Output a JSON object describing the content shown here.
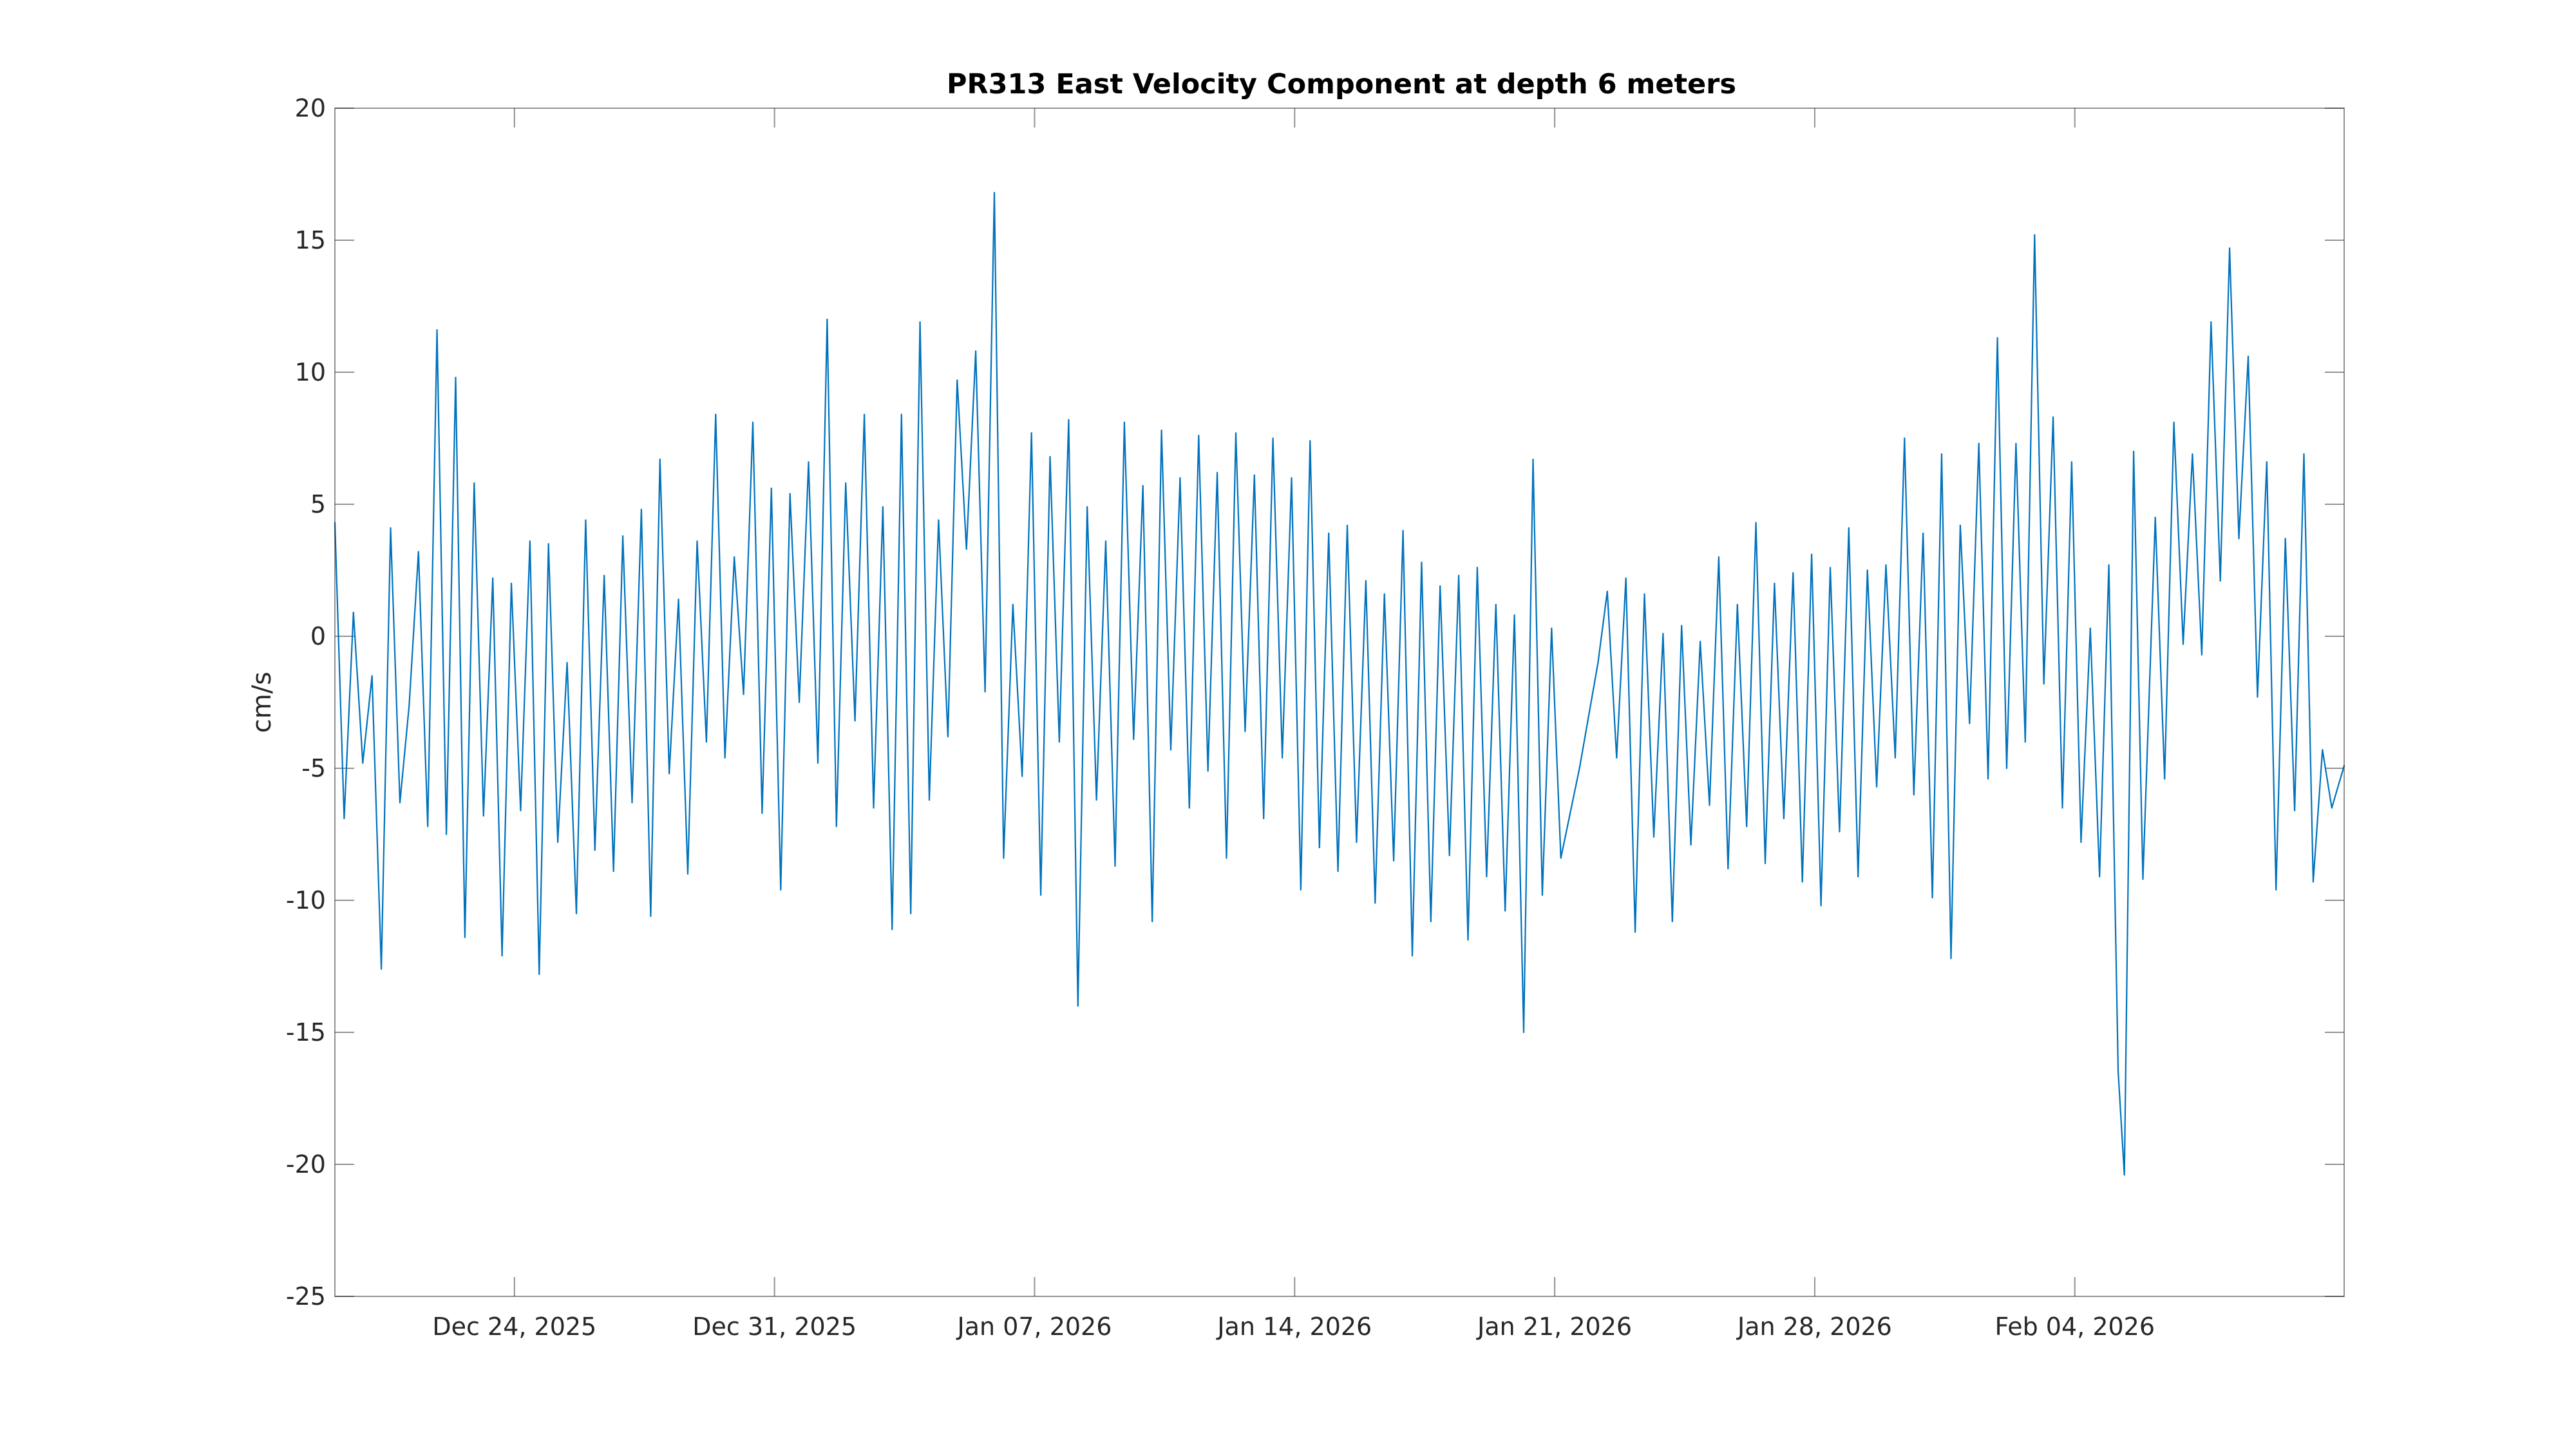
{
  "chart_data": {
    "type": "line",
    "title": "PR313 East Velocity Component at depth 6 meters",
    "xlabel": "",
    "ylabel": "cm/s",
    "xlim": [
      "2025-12-19T04:00",
      "2026-02-11T06:00"
    ],
    "ylim": [
      -25,
      20
    ],
    "yticks": [
      20,
      15,
      10,
      5,
      0,
      -5,
      -10,
      -15,
      -20,
      -25
    ],
    "xticks": [
      {
        "date": "2025-12-24",
        "label": "Dec 24, 2025"
      },
      {
        "date": "2025-12-31",
        "label": "Dec 31, 2025"
      },
      {
        "date": "2026-01-07",
        "label": "Jan 07, 2026"
      },
      {
        "date": "2026-01-14",
        "label": "Jan 14, 2026"
      },
      {
        "date": "2026-01-21",
        "label": "Jan 21, 2026"
      },
      {
        "date": "2026-01-28",
        "label": "Jan 28, 2026"
      },
      {
        "date": "2026-02-04",
        "label": "Feb 04, 2026"
      }
    ],
    "grid": false,
    "line_color": "#0072BD",
    "series": [
      {
        "name": "",
        "points": [
          [
            "2025-12-19T04:00",
            4.3
          ],
          [
            "2025-12-19T10:00",
            -6.9
          ],
          [
            "2025-12-19T16:00",
            0.9
          ],
          [
            "2025-12-19T22:00",
            -4.8
          ],
          [
            "2025-12-20T04:00",
            -1.5
          ],
          [
            "2025-12-20T10:00",
            -12.6
          ],
          [
            "2025-12-20T16:00",
            4.1
          ],
          [
            "2025-12-20T22:00",
            -6.3
          ],
          [
            "2025-12-21T04:00",
            -2.6
          ],
          [
            "2025-12-21T10:00",
            3.2
          ],
          [
            "2025-12-21T16:00",
            -7.2
          ],
          [
            "2025-12-21T22:00",
            11.6
          ],
          [
            "2025-12-22T04:00",
            -7.5
          ],
          [
            "2025-12-22T10:00",
            9.8
          ],
          [
            "2025-12-22T16:00",
            -11.4
          ],
          [
            "2025-12-22T22:00",
            5.8
          ],
          [
            "2025-12-23T04:00",
            -6.8
          ],
          [
            "2025-12-23T10:00",
            2.2
          ],
          [
            "2025-12-23T16:00",
            -12.1
          ],
          [
            "2025-12-23T22:00",
            2.0
          ],
          [
            "2025-12-24T04:00",
            -6.6
          ],
          [
            "2025-12-24T10:00",
            3.6
          ],
          [
            "2025-12-24T16:00",
            -12.8
          ],
          [
            "2025-12-24T22:00",
            3.5
          ],
          [
            "2025-12-25T04:00",
            -7.8
          ],
          [
            "2025-12-25T10:00",
            -1.0
          ],
          [
            "2025-12-25T16:00",
            -10.5
          ],
          [
            "2025-12-25T22:00",
            4.4
          ],
          [
            "2025-12-26T04:00",
            -8.1
          ],
          [
            "2025-12-26T10:00",
            2.3
          ],
          [
            "2025-12-26T16:00",
            -8.9
          ],
          [
            "2025-12-26T22:00",
            3.8
          ],
          [
            "2025-12-27T04:00",
            -6.3
          ],
          [
            "2025-12-27T10:00",
            4.8
          ],
          [
            "2025-12-27T16:00",
            -10.6
          ],
          [
            "2025-12-27T22:00",
            6.7
          ],
          [
            "2025-12-28T04:00",
            -5.2
          ],
          [
            "2025-12-28T10:00",
            1.4
          ],
          [
            "2025-12-28T16:00",
            -9.0
          ],
          [
            "2025-12-28T22:00",
            3.6
          ],
          [
            "2025-12-29T04:00",
            -4.0
          ],
          [
            "2025-12-29T10:00",
            8.4
          ],
          [
            "2025-12-29T16:00",
            -4.6
          ],
          [
            "2025-12-29T22:00",
            3.0
          ],
          [
            "2025-12-30T04:00",
            -2.2
          ],
          [
            "2025-12-30T10:00",
            8.1
          ],
          [
            "2025-12-30T16:00",
            -6.7
          ],
          [
            "2025-12-30T22:00",
            5.6
          ],
          [
            "2025-12-31T04:00",
            -9.6
          ],
          [
            "2025-12-31T10:00",
            5.4
          ],
          [
            "2025-12-31T16:00",
            -2.5
          ],
          [
            "2025-12-31T22:00",
            6.6
          ],
          [
            "2026-01-01T04:00",
            -4.8
          ],
          [
            "2026-01-01T10:00",
            12.0
          ],
          [
            "2026-01-01T16:00",
            -7.2
          ],
          [
            "2026-01-01T22:00",
            5.8
          ],
          [
            "2026-01-02T04:00",
            -3.2
          ],
          [
            "2026-01-02T10:00",
            8.4
          ],
          [
            "2026-01-02T16:00",
            -6.5
          ],
          [
            "2026-01-02T22:00",
            4.9
          ],
          [
            "2026-01-03T04:00",
            -11.1
          ],
          [
            "2026-01-03T10:00",
            8.4
          ],
          [
            "2026-01-03T16:00",
            -10.5
          ],
          [
            "2026-01-03T22:00",
            11.9
          ],
          [
            "2026-01-04T04:00",
            -6.2
          ],
          [
            "2026-01-04T10:00",
            4.4
          ],
          [
            "2026-01-04T16:00",
            -3.8
          ],
          [
            "2026-01-04T22:00",
            9.7
          ],
          [
            "2026-01-05T04:00",
            3.3
          ],
          [
            "2026-01-05T10:00",
            10.8
          ],
          [
            "2026-01-05T16:00",
            -2.1
          ],
          [
            "2026-01-05T22:00",
            16.8
          ],
          [
            "2026-01-06T04:00",
            -8.4
          ],
          [
            "2026-01-06T10:00",
            1.2
          ],
          [
            "2026-01-06T16:00",
            -5.3
          ],
          [
            "2026-01-06T22:00",
            7.7
          ],
          [
            "2026-01-07T04:00",
            -9.8
          ],
          [
            "2026-01-07T10:00",
            6.8
          ],
          [
            "2026-01-07T16:00",
            -4.0
          ],
          [
            "2026-01-07T22:00",
            8.2
          ],
          [
            "2026-01-08T04:00",
            -14.0
          ],
          [
            "2026-01-08T10:00",
            4.9
          ],
          [
            "2026-01-08T16:00",
            -6.2
          ],
          [
            "2026-01-08T22:00",
            3.6
          ],
          [
            "2026-01-09T04:00",
            -8.7
          ],
          [
            "2026-01-09T10:00",
            8.1
          ],
          [
            "2026-01-09T16:00",
            -3.9
          ],
          [
            "2026-01-09T22:00",
            5.7
          ],
          [
            "2026-01-10T04:00",
            -10.8
          ],
          [
            "2026-01-10T10:00",
            7.8
          ],
          [
            "2026-01-10T16:00",
            -4.3
          ],
          [
            "2026-01-10T22:00",
            6.0
          ],
          [
            "2026-01-11T04:00",
            -6.5
          ],
          [
            "2026-01-11T10:00",
            7.6
          ],
          [
            "2026-01-11T16:00",
            -5.1
          ],
          [
            "2026-01-11T22:00",
            6.2
          ],
          [
            "2026-01-12T04:00",
            -8.4
          ],
          [
            "2026-01-12T10:00",
            7.7
          ],
          [
            "2026-01-12T16:00",
            -3.6
          ],
          [
            "2026-01-12T22:00",
            6.1
          ],
          [
            "2026-01-13T04:00",
            -6.9
          ],
          [
            "2026-01-13T10:00",
            7.5
          ],
          [
            "2026-01-13T16:00",
            -4.6
          ],
          [
            "2026-01-13T22:00",
            6.0
          ],
          [
            "2026-01-14T04:00",
            -9.6
          ],
          [
            "2026-01-14T10:00",
            7.4
          ],
          [
            "2026-01-14T16:00",
            -8.0
          ],
          [
            "2026-01-14T22:00",
            3.9
          ],
          [
            "2026-01-15T04:00",
            -8.9
          ],
          [
            "2026-01-15T10:00",
            4.2
          ],
          [
            "2026-01-15T16:00",
            -7.8
          ],
          [
            "2026-01-15T22:00",
            2.1
          ],
          [
            "2026-01-16T04:00",
            -10.1
          ],
          [
            "2026-01-16T10:00",
            1.6
          ],
          [
            "2026-01-16T16:00",
            -8.5
          ],
          [
            "2026-01-16T22:00",
            4.0
          ],
          [
            "2026-01-17T04:00",
            -12.1
          ],
          [
            "2026-01-17T10:00",
            2.8
          ],
          [
            "2026-01-17T16:00",
            -10.8
          ],
          [
            "2026-01-17T22:00",
            1.9
          ],
          [
            "2026-01-18T04:00",
            -8.3
          ],
          [
            "2026-01-18T10:00",
            2.3
          ],
          [
            "2026-01-18T16:00",
            -11.5
          ],
          [
            "2026-01-18T22:00",
            2.6
          ],
          [
            "2026-01-19T04:00",
            -9.1
          ],
          [
            "2026-01-19T10:00",
            1.2
          ],
          [
            "2026-01-19T16:00",
            -10.4
          ],
          [
            "2026-01-19T22:00",
            0.8
          ],
          [
            "2026-01-20T04:00",
            -15.0
          ],
          [
            "2026-01-20T10:00",
            6.7
          ],
          [
            "2026-01-20T16:00",
            -9.8
          ],
          [
            "2026-01-20T22:00",
            0.3
          ],
          [
            "2026-01-21T04:00",
            -8.4
          ],
          [
            "2026-01-21T16:00",
            -5.0
          ],
          [
            "2026-01-22T04:00",
            -1.0
          ],
          [
            "2026-01-22T10:00",
            1.7
          ],
          [
            "2026-01-22T16:00",
            -4.6
          ],
          [
            "2026-01-22T22:00",
            2.2
          ],
          [
            "2026-01-23T04:00",
            -11.2
          ],
          [
            "2026-01-23T10:00",
            1.6
          ],
          [
            "2026-01-23T16:00",
            -7.6
          ],
          [
            "2026-01-23T22:00",
            0.1
          ],
          [
            "2026-01-24T04:00",
            -10.8
          ],
          [
            "2026-01-24T10:00",
            0.4
          ],
          [
            "2026-01-24T16:00",
            -7.9
          ],
          [
            "2026-01-24T22:00",
            -0.2
          ],
          [
            "2026-01-25T04:00",
            -6.4
          ],
          [
            "2026-01-25T10:00",
            3.0
          ],
          [
            "2026-01-25T16:00",
            -8.8
          ],
          [
            "2026-01-25T22:00",
            1.2
          ],
          [
            "2026-01-26T04:00",
            -7.2
          ],
          [
            "2026-01-26T10:00",
            4.3
          ],
          [
            "2026-01-26T16:00",
            -8.6
          ],
          [
            "2026-01-26T22:00",
            2.0
          ],
          [
            "2026-01-27T04:00",
            -6.9
          ],
          [
            "2026-01-27T10:00",
            2.4
          ],
          [
            "2026-01-27T16:00",
            -9.3
          ],
          [
            "2026-01-27T22:00",
            3.1
          ],
          [
            "2026-01-28T04:00",
            -10.2
          ],
          [
            "2026-01-28T10:00",
            2.6
          ],
          [
            "2026-01-28T16:00",
            -7.4
          ],
          [
            "2026-01-28T22:00",
            4.1
          ],
          [
            "2026-01-29T04:00",
            -9.1
          ],
          [
            "2026-01-29T10:00",
            2.5
          ],
          [
            "2026-01-29T16:00",
            -5.7
          ],
          [
            "2026-01-29T22:00",
            2.7
          ],
          [
            "2026-01-30T04:00",
            -4.6
          ],
          [
            "2026-01-30T10:00",
            7.5
          ],
          [
            "2026-01-30T16:00",
            -6.0
          ],
          [
            "2026-01-30T22:00",
            3.9
          ],
          [
            "2026-01-31T04:00",
            -9.9
          ],
          [
            "2026-01-31T10:00",
            6.9
          ],
          [
            "2026-01-31T16:00",
            -12.2
          ],
          [
            "2026-01-31T22:00",
            4.2
          ],
          [
            "2026-02-01T04:00",
            -3.3
          ],
          [
            "2026-02-01T10:00",
            7.3
          ],
          [
            "2026-02-01T16:00",
            -5.4
          ],
          [
            "2026-02-01T22:00",
            11.3
          ],
          [
            "2026-02-02T04:00",
            -5.0
          ],
          [
            "2026-02-02T10:00",
            7.3
          ],
          [
            "2026-02-02T16:00",
            -4.0
          ],
          [
            "2026-02-02T22:00",
            15.2
          ],
          [
            "2026-02-03T04:00",
            -1.8
          ],
          [
            "2026-02-03T10:00",
            8.3
          ],
          [
            "2026-02-03T16:00",
            -6.5
          ],
          [
            "2026-02-03T22:00",
            6.6
          ],
          [
            "2026-02-04T04:00",
            -7.8
          ],
          [
            "2026-02-04T10:00",
            0.3
          ],
          [
            "2026-02-04T16:00",
            -9.1
          ],
          [
            "2026-02-04T22:00",
            2.7
          ],
          [
            "2026-02-05T04:00",
            -16.5
          ],
          [
            "2026-02-05T08:00",
            -20.4
          ],
          [
            "2026-02-05T14:00",
            7.0
          ],
          [
            "2026-02-05T20:00",
            -9.2
          ],
          [
            "2026-02-06T04:00",
            4.5
          ],
          [
            "2026-02-06T10:00",
            -5.4
          ],
          [
            "2026-02-06T16:00",
            8.1
          ],
          [
            "2026-02-06T22:00",
            -0.3
          ],
          [
            "2026-02-07T04:00",
            6.9
          ],
          [
            "2026-02-07T10:00",
            -0.7
          ],
          [
            "2026-02-07T16:00",
            11.9
          ],
          [
            "2026-02-07T22:00",
            2.1
          ],
          [
            "2026-02-08T04:00",
            14.7
          ],
          [
            "2026-02-08T10:00",
            3.7
          ],
          [
            "2026-02-08T16:00",
            10.6
          ],
          [
            "2026-02-08T22:00",
            -2.3
          ],
          [
            "2026-02-09T04:00",
            6.6
          ],
          [
            "2026-02-09T10:00",
            -9.6
          ],
          [
            "2026-02-09T16:00",
            3.7
          ],
          [
            "2026-02-09T22:00",
            -6.6
          ],
          [
            "2026-02-10T04:00",
            6.9
          ],
          [
            "2026-02-10T10:00",
            -9.3
          ],
          [
            "2026-02-10T16:00",
            -4.3
          ],
          [
            "2026-02-10T22:00",
            -6.5
          ],
          [
            "2026-02-11T06:00",
            -4.9
          ]
        ]
      }
    ]
  }
}
